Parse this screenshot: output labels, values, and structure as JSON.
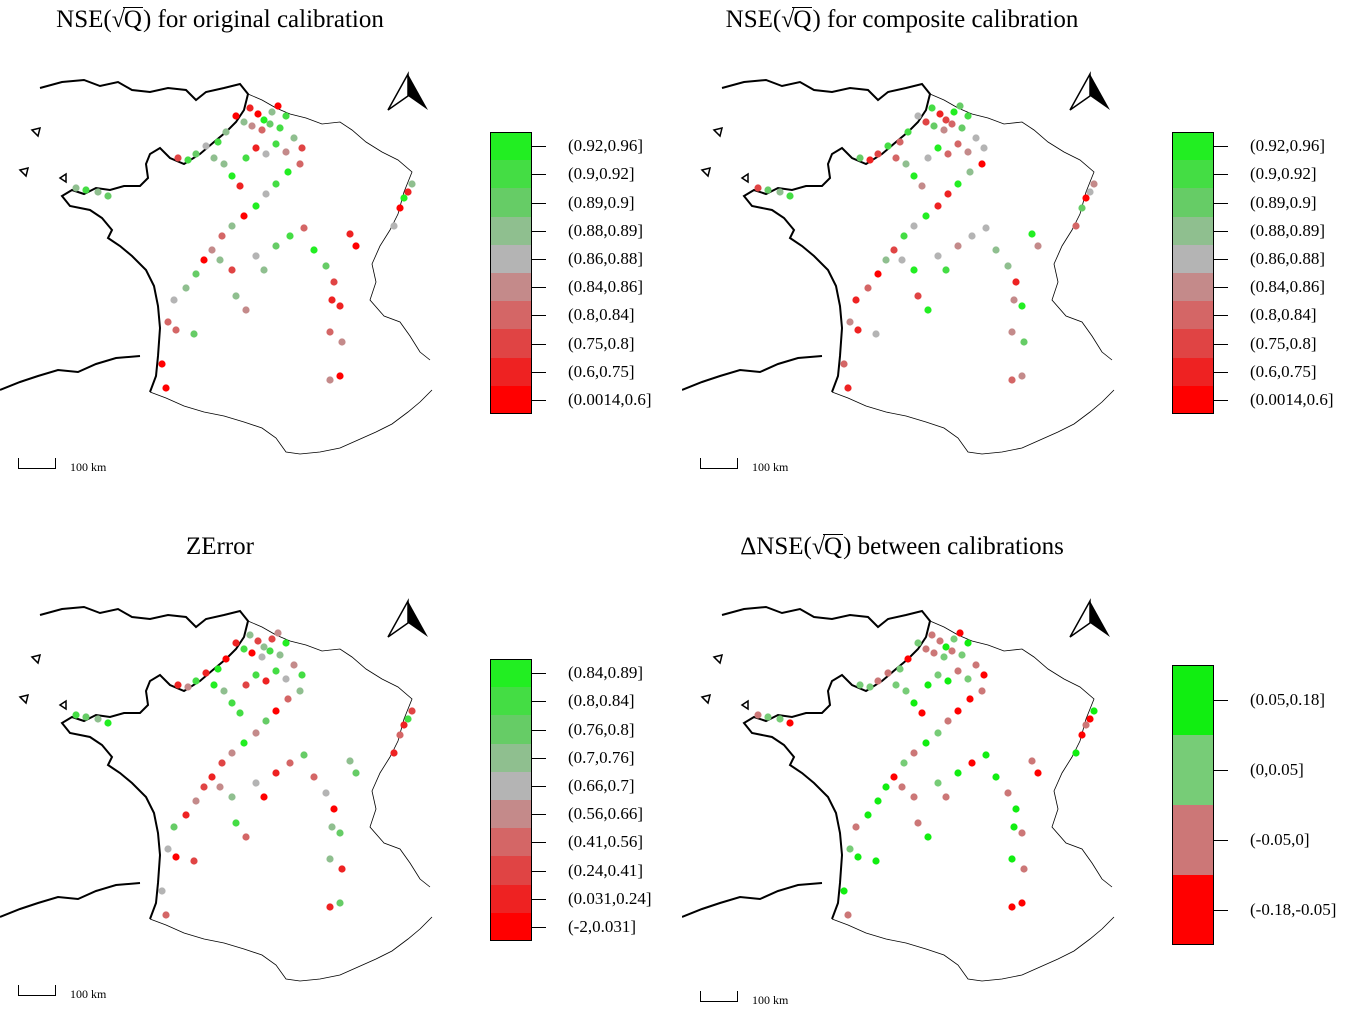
{
  "panels": [
    {
      "title_prefix": "NSE(",
      "title_radical": "√",
      "title_q": "Q",
      "title_suffix": ") for original calibration",
      "legend": [
        "(0.92,0.96]",
        "(0.9,0.92]",
        "(0.89,0.9]",
        "(0.88,0.89]",
        "(0.86,0.88]",
        "(0.84,0.86]",
        "(0.8,0.84]",
        "(0.75,0.8]",
        "(0.6,0.75]",
        "(0.0014,0.6]"
      ],
      "scale_text": "100 km"
    },
    {
      "title_prefix": "NSE(",
      "title_radical": "√",
      "title_q": "Q",
      "title_suffix": ") for composite calibration",
      "legend": [
        "(0.92,0.96]",
        "(0.9,0.92]",
        "(0.89,0.9]",
        "(0.88,0.89]",
        "(0.86,0.88]",
        "(0.84,0.86]",
        "(0.8,0.84]",
        "(0.75,0.8]",
        "(0.6,0.75]",
        "(0.0014,0.6]"
      ],
      "scale_text": "100 km"
    },
    {
      "title_prefix": "ZError",
      "title_radical": "",
      "title_q": "",
      "title_suffix": "",
      "legend": [
        "(0.84,0.89]",
        "(0.8,0.84]",
        "(0.76,0.8]",
        "(0.7,0.76]",
        "(0.66,0.7]",
        "(0.56,0.66]",
        "(0.41,0.56]",
        "(0.24,0.41]",
        "(0.031,0.24]",
        "(-2,0.031]"
      ],
      "scale_text": "100 km"
    },
    {
      "title_prefix": "ΔNSE(",
      "title_radical": "√",
      "title_q": "Q",
      "title_suffix": ") between calibrations",
      "legend": [
        "(0.05,0.18]",
        "(0,0.05]",
        "(-0.05,0]",
        "(-0.18,-0.05]"
      ],
      "scale_text": "100 km"
    }
  ],
  "colors": {
    "ten_class": [
      "#22ee22",
      "#44dd44",
      "#66cc66",
      "#8fbf8f",
      "#b4b4b4",
      "#c48a8a",
      "#d46666",
      "#e04444",
      "#ee2222",
      "#ff0000"
    ],
    "four_class": [
      "#11ee11",
      "#77cc77",
      "#cc7777",
      "#ff0000"
    ]
  },
  "icons": {
    "north_arrow": "north-arrow-icon",
    "scale_bar": "scale-bar-icon"
  }
}
